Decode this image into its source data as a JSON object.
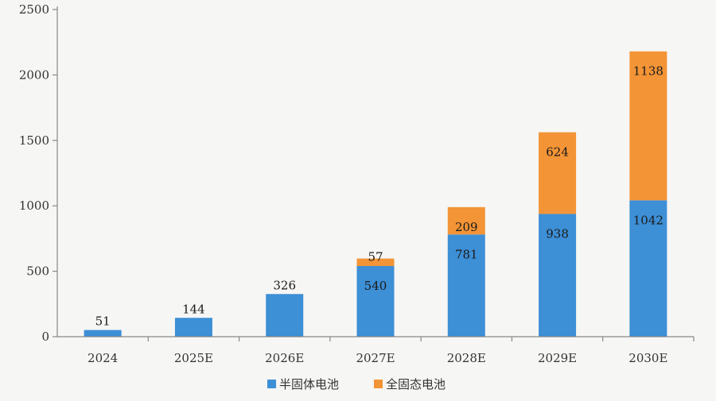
{
  "chart_data": {
    "type": "bar",
    "stacked": true,
    "categories": [
      "2024",
      "2025E",
      "2026E",
      "2027E",
      "2028E",
      "2029E",
      "2030E"
    ],
    "series": [
      {
        "name": "半固体电池",
        "color": "#3d8fd6",
        "values": [
          51,
          144,
          326,
          540,
          781,
          938,
          1042
        ]
      },
      {
        "name": "全固态电池",
        "color": "#f39436",
        "values": [
          0,
          0,
          0,
          57,
          209,
          624,
          1138
        ]
      }
    ],
    "yticks": [
      0,
      500,
      1000,
      1500,
      2000,
      2500
    ],
    "ylim": [
      0,
      2500
    ],
    "legend_position": "bottom-center",
    "grid": false
  }
}
